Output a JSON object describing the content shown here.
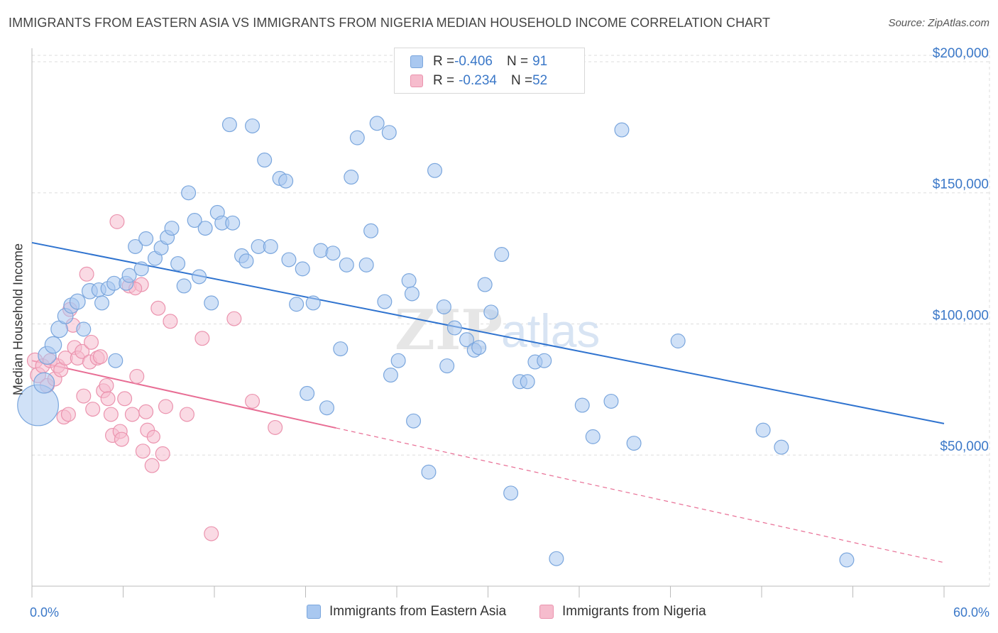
{
  "title": "IMMIGRANTS FROM EASTERN ASIA VS IMMIGRANTS FROM NIGERIA MEDIAN HOUSEHOLD INCOME CORRELATION CHART",
  "source": "Source: ZipAtlas.com",
  "watermark": {
    "zip": "ZIP",
    "atlas": "atlas"
  },
  "colors": {
    "blue_fill": "#a9c8f0",
    "blue_stroke": "#7aa6dd",
    "blue_line": "#2f73cf",
    "pink_fill": "#f6bccd",
    "pink_stroke": "#eb93ae",
    "pink_line": "#e86d94",
    "axis_label": "#3b78c8",
    "grid": "#dddddd"
  },
  "legend": {
    "rows": [
      {
        "r_label": "R = ",
        "r_value": "-0.406",
        "n_label": "N = ",
        "n_value": "91",
        "swatch": "blue"
      },
      {
        "r_label": "R = ",
        "r_value": "-0.234",
        "n_label": "N = ",
        "n_value": "52",
        "swatch": "pink"
      }
    ]
  },
  "chart_data": {
    "type": "scatter",
    "xlabel": "",
    "ylabel": "Median Household Income",
    "xlim": [
      0,
      60
    ],
    "ylim": [
      0,
      210000
    ],
    "x_tick_labels": {
      "min": "0.0%",
      "max": "60.0%"
    },
    "y_ticks": [
      {
        "value": 50000,
        "label": "$50,000"
      },
      {
        "value": 100000,
        "label": "$100,000"
      },
      {
        "value": 150000,
        "label": "$150,000"
      },
      {
        "value": 200000,
        "label": "$200,000"
      }
    ],
    "grid": true,
    "legend_position": "top-center",
    "series": [
      {
        "name": "Immigrants from Eastern Asia",
        "color": "blue",
        "trend": {
          "x": [
            0,
            60
          ],
          "y": [
            131000,
            62000
          ],
          "dashed_from": null
        },
        "points": [
          [
            0.4,
            69000,
            3.2
          ],
          [
            0.8,
            77500,
            1.6
          ],
          [
            1.0,
            88000,
            1.4
          ],
          [
            1.4,
            92000,
            1.3
          ],
          [
            1.8,
            98000,
            1.3
          ],
          [
            2.2,
            103000,
            1.2
          ],
          [
            2.6,
            107000,
            1.2
          ],
          [
            3.0,
            108500,
            1.2
          ],
          [
            3.4,
            98000,
            1.1
          ],
          [
            3.8,
            112500,
            1.2
          ],
          [
            4.4,
            113000,
            1.1
          ],
          [
            4.6,
            108000,
            1.1
          ],
          [
            5.0,
            113500,
            1.1
          ],
          [
            5.4,
            115500,
            1.1
          ],
          [
            5.5,
            86000,
            1.1
          ],
          [
            6.2,
            115500,
            1.1
          ],
          [
            6.4,
            118500,
            1.1
          ],
          [
            6.8,
            129500,
            1.1
          ],
          [
            7.2,
            121000,
            1.1
          ],
          [
            7.5,
            132500,
            1.1
          ],
          [
            8.1,
            125000,
            1.1
          ],
          [
            8.5,
            129000,
            1.1
          ],
          [
            8.9,
            133000,
            1.1
          ],
          [
            9.2,
            136500,
            1.1
          ],
          [
            9.6,
            123000,
            1.1
          ],
          [
            10.0,
            114500,
            1.1
          ],
          [
            10.3,
            150000,
            1.1
          ],
          [
            10.7,
            139500,
            1.1
          ],
          [
            11.0,
            118000,
            1.1
          ],
          [
            11.4,
            136500,
            1.1
          ],
          [
            11.8,
            108000,
            1.1
          ],
          [
            12.2,
            142500,
            1.1
          ],
          [
            12.5,
            138500,
            1.1
          ],
          [
            13.2,
            138500,
            1.1
          ],
          [
            13.0,
            176000,
            1.1
          ],
          [
            13.8,
            126000,
            1.1
          ],
          [
            14.1,
            124000,
            1.1
          ],
          [
            14.5,
            175500,
            1.1
          ],
          [
            14.9,
            129500,
            1.1
          ],
          [
            15.3,
            162500,
            1.1
          ],
          [
            15.7,
            129500,
            1.1
          ],
          [
            16.3,
            155500,
            1.1
          ],
          [
            16.7,
            154500,
            1.1
          ],
          [
            16.9,
            124500,
            1.1
          ],
          [
            17.4,
            107500,
            1.1
          ],
          [
            17.8,
            121000,
            1.1
          ],
          [
            18.1,
            73500,
            1.1
          ],
          [
            18.5,
            108000,
            1.1
          ],
          [
            19.0,
            128000,
            1.1
          ],
          [
            19.4,
            68000,
            1.1
          ],
          [
            19.8,
            127000,
            1.1
          ],
          [
            20.3,
            90500,
            1.1
          ],
          [
            20.7,
            122500,
            1.1
          ],
          [
            21.0,
            156000,
            1.1
          ],
          [
            21.4,
            171000,
            1.1
          ],
          [
            22.0,
            122500,
            1.1
          ],
          [
            22.3,
            135500,
            1.1
          ],
          [
            22.7,
            176500,
            1.1
          ],
          [
            23.2,
            108500,
            1.1
          ],
          [
            23.5,
            173000,
            1.1
          ],
          [
            23.6,
            80500,
            1.1
          ],
          [
            24.1,
            86000,
            1.1
          ],
          [
            24.8,
            116500,
            1.1
          ],
          [
            25.0,
            111500,
            1.1
          ],
          [
            25.1,
            63000,
            1.1
          ],
          [
            26.1,
            43500,
            1.1
          ],
          [
            26.5,
            158500,
            1.1
          ],
          [
            27.1,
            106500,
            1.1
          ],
          [
            27.3,
            84000,
            1.1
          ],
          [
            27.8,
            98500,
            1.1
          ],
          [
            28.6,
            94000,
            1.1
          ],
          [
            29.1,
            90000,
            1.1
          ],
          [
            29.4,
            91000,
            1.1
          ],
          [
            29.8,
            115000,
            1.1
          ],
          [
            30.2,
            104500,
            1.1
          ],
          [
            30.9,
            126500,
            1.1
          ],
          [
            31.5,
            35500,
            1.1
          ],
          [
            32.1,
            78000,
            1.1
          ],
          [
            32.6,
            78000,
            1.1
          ],
          [
            33.1,
            85500,
            1.1
          ],
          [
            33.7,
            86000,
            1.1
          ],
          [
            34.5,
            10500,
            1.1
          ],
          [
            36.2,
            69000,
            1.1
          ],
          [
            36.9,
            57000,
            1.1
          ],
          [
            38.1,
            70500,
            1.1
          ],
          [
            38.8,
            174000,
            1.1
          ],
          [
            39.6,
            54500,
            1.1
          ],
          [
            42.5,
            93500,
            1.1
          ],
          [
            48.1,
            59500,
            1.1
          ],
          [
            49.3,
            53000,
            1.1
          ],
          [
            53.6,
            10000,
            1.1
          ]
        ]
      },
      {
        "name": "Immigrants from Nigeria",
        "color": "pink",
        "trend": {
          "x": [
            0,
            60
          ],
          "y": [
            86000,
            9000
          ],
          "dashed_from": 20
        },
        "points": [
          [
            0.2,
            86000,
            1.2
          ],
          [
            0.4,
            80500,
            1.2
          ],
          [
            0.7,
            84000,
            1.1
          ],
          [
            1.0,
            76500,
            1.1
          ],
          [
            1.2,
            86000,
            1.1
          ],
          [
            1.5,
            79000,
            1.1
          ],
          [
            1.7,
            84000,
            1.1
          ],
          [
            1.9,
            82500,
            1.1
          ],
          [
            2.2,
            87000,
            1.1
          ],
          [
            2.1,
            64500,
            1.1
          ],
          [
            2.5,
            105500,
            1.1
          ],
          [
            2.4,
            65500,
            1.1
          ],
          [
            2.7,
            99500,
            1.1
          ],
          [
            2.8,
            91000,
            1.1
          ],
          [
            3.0,
            87000,
            1.1
          ],
          [
            3.3,
            89500,
            1.1
          ],
          [
            3.4,
            72500,
            1.1
          ],
          [
            3.6,
            119000,
            1.1
          ],
          [
            3.8,
            85500,
            1.1
          ],
          [
            3.9,
            93000,
            1.1
          ],
          [
            4.0,
            67500,
            1.1
          ],
          [
            4.3,
            87000,
            1.1
          ],
          [
            4.5,
            87500,
            1.1
          ],
          [
            4.7,
            74500,
            1.1
          ],
          [
            4.9,
            76500,
            1.1
          ],
          [
            5.0,
            71500,
            1.1
          ],
          [
            5.2,
            65500,
            1.1
          ],
          [
            5.3,
            57500,
            1.1
          ],
          [
            5.6,
            139000,
            1.1
          ],
          [
            5.8,
            59000,
            1.1
          ],
          [
            5.9,
            56000,
            1.1
          ],
          [
            6.1,
            71500,
            1.1
          ],
          [
            6.4,
            114500,
            1.1
          ],
          [
            6.6,
            65500,
            1.1
          ],
          [
            6.9,
            80000,
            1.1
          ],
          [
            7.2,
            115000,
            1.1
          ],
          [
            7.3,
            51500,
            1.1
          ],
          [
            7.5,
            66500,
            1.1
          ],
          [
            7.6,
            59500,
            1.1
          ],
          [
            7.9,
            46000,
            1.1
          ],
          [
            8.3,
            106000,
            1.1
          ],
          [
            8.6,
            50500,
            1.1
          ],
          [
            8.8,
            68500,
            1.1
          ],
          [
            9.1,
            101000,
            1.1
          ],
          [
            10.2,
            65500,
            1.1
          ],
          [
            11.2,
            94500,
            1.1
          ],
          [
            11.8,
            20000,
            1.1
          ],
          [
            13.3,
            102000,
            1.1
          ],
          [
            14.5,
            70500,
            1.1
          ],
          [
            16.0,
            60500,
            1.1
          ],
          [
            6.8,
            113500,
            1.0
          ],
          [
            8.0,
            57000,
            1.0
          ]
        ]
      }
    ]
  },
  "bottom_legend": [
    {
      "label": "Immigrants from Eastern Asia",
      "swatch": "blue"
    },
    {
      "label": "Immigrants from Nigeria",
      "swatch": "pink"
    }
  ]
}
